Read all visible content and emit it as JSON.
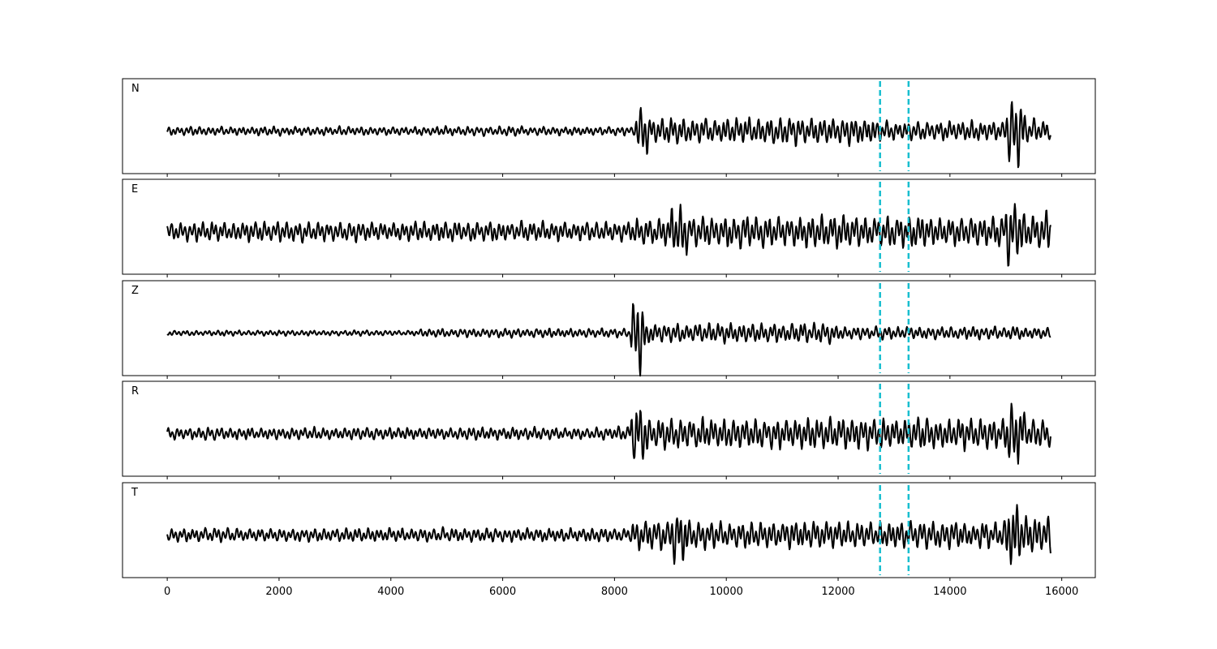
{
  "chart_data": {
    "type": "line",
    "title": "",
    "xlabel": "",
    "ylabel": "",
    "xlim": [
      -800,
      16600
    ],
    "xticks": [
      0,
      2000,
      4000,
      6000,
      8000,
      10000,
      12000,
      14000,
      16000
    ],
    "x_start": 0,
    "x_end": 15800,
    "grid": false,
    "trace_color": "#000000",
    "marker_color": "#17becf",
    "markers": [
      12750,
      13260
    ],
    "panels": [
      {
        "name": "N",
        "segments": [
          {
            "x0": 0,
            "x1": 8380,
            "amp": 0.1
          },
          {
            "x0": 8380,
            "x1": 8600,
            "amp": 0.55
          },
          {
            "x0": 8600,
            "x1": 12700,
            "amp": 0.3
          },
          {
            "x0": 12700,
            "x1": 15000,
            "amp": 0.22
          },
          {
            "x0": 15000,
            "x1": 15350,
            "amp": 0.75
          },
          {
            "x0": 15350,
            "x1": 15800,
            "amp": 0.25
          }
        ]
      },
      {
        "name": "E",
        "segments": [
          {
            "x0": 0,
            "x1": 8300,
            "amp": 0.22
          },
          {
            "x0": 8300,
            "x1": 9000,
            "amp": 0.3
          },
          {
            "x0": 9000,
            "x1": 9300,
            "amp": 0.6
          },
          {
            "x0": 9300,
            "x1": 15000,
            "amp": 0.35
          },
          {
            "x0": 15000,
            "x1": 15300,
            "amp": 0.7
          },
          {
            "x0": 15300,
            "x1": 15800,
            "amp": 0.45
          }
        ]
      },
      {
        "name": "Z",
        "segments": [
          {
            "x0": 0,
            "x1": 4500,
            "amp": 0.06
          },
          {
            "x0": 4500,
            "x1": 8300,
            "amp": 0.1
          },
          {
            "x0": 8300,
            "x1": 8560,
            "amp": 0.85
          },
          {
            "x0": 8560,
            "x1": 12000,
            "amp": 0.22
          },
          {
            "x0": 12000,
            "x1": 15800,
            "amp": 0.14
          }
        ]
      },
      {
        "name": "R",
        "segments": [
          {
            "x0": 0,
            "x1": 8300,
            "amp": 0.14
          },
          {
            "x0": 8300,
            "x1": 8600,
            "amp": 0.65
          },
          {
            "x0": 8600,
            "x1": 15000,
            "amp": 0.35
          },
          {
            "x0": 15000,
            "x1": 15350,
            "amp": 0.7
          },
          {
            "x0": 15350,
            "x1": 15800,
            "amp": 0.3
          }
        ]
      },
      {
        "name": "T",
        "segments": [
          {
            "x0": 0,
            "x1": 8300,
            "amp": 0.15
          },
          {
            "x0": 8300,
            "x1": 9000,
            "amp": 0.35
          },
          {
            "x0": 9000,
            "x1": 9300,
            "amp": 0.65
          },
          {
            "x0": 9300,
            "x1": 15000,
            "amp": 0.3
          },
          {
            "x0": 15000,
            "x1": 15300,
            "amp": 0.75
          },
          {
            "x0": 15300,
            "x1": 15800,
            "amp": 0.45
          }
        ]
      }
    ]
  }
}
